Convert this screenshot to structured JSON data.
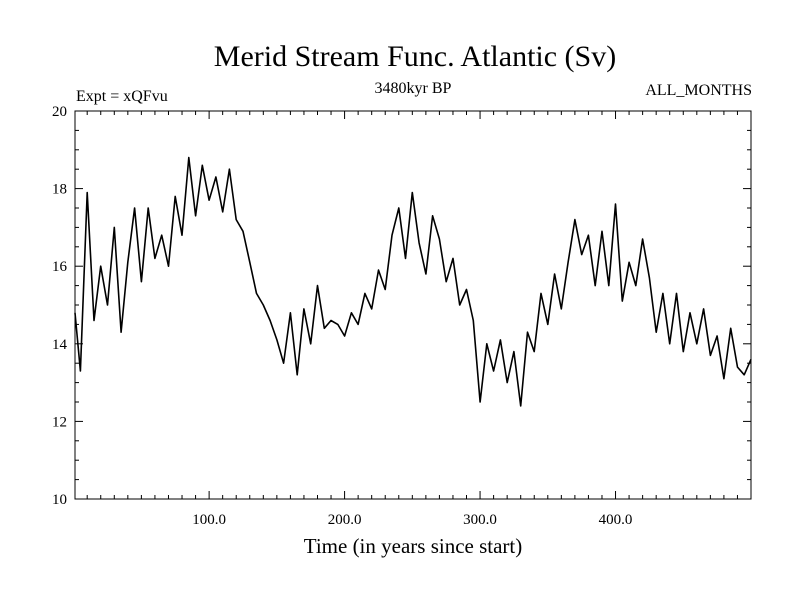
{
  "chart_data": {
    "type": "line",
    "title": "Merid Stream Func. Atlantic (Sv)",
    "subtitle_left": "Expt = xQFvu",
    "subtitle_center": "3480kyr BP",
    "subtitle_right": "ALL_MONTHS",
    "xlabel": "Time (in years since start)",
    "ylabel": "",
    "xlim": [
      1,
      500
    ],
    "ylim": [
      10,
      20
    ],
    "x_ticks": [
      100,
      200,
      300,
      400
    ],
    "x_tick_labels": [
      "100.0",
      "200.0",
      "300.0",
      "400.0"
    ],
    "y_ticks": [
      10,
      12,
      14,
      16,
      18,
      20
    ],
    "y_tick_labels": [
      "10",
      "12",
      "14",
      "16",
      "18",
      "20"
    ],
    "grid": false,
    "line_color": "#000000",
    "series": [
      {
        "name": "Merid Stream Func. Atlantic",
        "x": [
          1,
          5,
          10,
          15,
          20,
          25,
          30,
          35,
          40,
          45,
          50,
          55,
          60,
          65,
          70,
          75,
          80,
          85,
          90,
          95,
          100,
          105,
          110,
          115,
          120,
          125,
          130,
          135,
          140,
          145,
          150,
          155,
          160,
          165,
          170,
          175,
          180,
          185,
          190,
          195,
          200,
          205,
          210,
          215,
          220,
          225,
          230,
          235,
          240,
          245,
          250,
          255,
          260,
          265,
          270,
          275,
          280,
          285,
          290,
          295,
          300,
          305,
          310,
          315,
          320,
          325,
          330,
          335,
          340,
          345,
          350,
          355,
          360,
          365,
          370,
          375,
          380,
          385,
          390,
          395,
          400,
          405,
          410,
          415,
          420,
          425,
          430,
          435,
          440,
          445,
          450,
          455,
          460,
          465,
          470,
          475,
          480,
          485,
          490,
          495,
          500
        ],
        "values": [
          14.8,
          13.3,
          17.9,
          14.6,
          16.0,
          15.0,
          17.0,
          14.3,
          16.1,
          17.5,
          15.6,
          17.5,
          16.2,
          16.8,
          16.0,
          17.8,
          16.8,
          18.8,
          17.3,
          18.6,
          17.7,
          18.3,
          17.4,
          18.5,
          17.2,
          16.9,
          16.1,
          15.3,
          15.0,
          14.6,
          14.1,
          13.5,
          14.8,
          13.2,
          14.9,
          14.0,
          15.5,
          14.4,
          14.6,
          14.5,
          14.2,
          14.8,
          14.5,
          15.3,
          14.9,
          15.9,
          15.4,
          16.8,
          17.5,
          16.2,
          17.9,
          16.6,
          15.8,
          17.3,
          16.7,
          15.6,
          16.2,
          15.0,
          15.4,
          14.6,
          12.5,
          14.0,
          13.3,
          14.1,
          13.0,
          13.8,
          12.4,
          14.3,
          13.8,
          15.3,
          14.5,
          15.8,
          14.9,
          16.1,
          17.2,
          16.3,
          16.8,
          15.5,
          16.9,
          15.5,
          17.6,
          15.1,
          16.1,
          15.5,
          16.7,
          15.7,
          14.3,
          15.3,
          14.0,
          15.3,
          13.8,
          14.8,
          14.0,
          14.9,
          13.7,
          14.2,
          13.1,
          14.4,
          13.4,
          13.2,
          13.6
        ]
      }
    ]
  }
}
